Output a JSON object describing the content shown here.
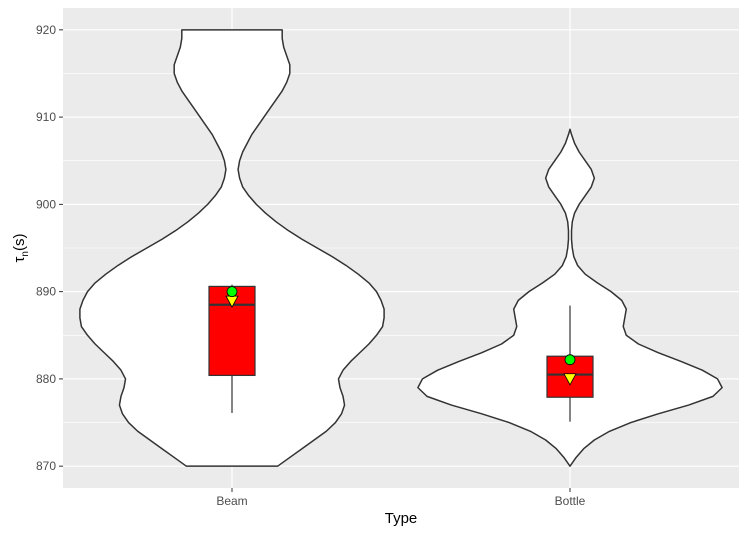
{
  "chart_data": {
    "type": "violin",
    "xlabel": "Type",
    "ylabel": {
      "base": "τ",
      "sub": "n",
      "rest": "(s)"
    },
    "ylim": [
      867.5,
      922.5
    ],
    "yticks": [
      870,
      880,
      890,
      900,
      910,
      920
    ],
    "ytick_labels": [
      "870",
      "880",
      "890",
      "900",
      "910",
      "920"
    ],
    "categories": [
      "Beam",
      "Bottle"
    ],
    "grid": true,
    "colors": {
      "panel": "#ebebeb",
      "grid_major": "#ffffff",
      "violin_fill": "#ffffff",
      "violin_stroke": "#333333",
      "box_fill": "#ff0000",
      "mean_marker": "#00ff00",
      "median_marker": "#ffff00"
    },
    "groups": [
      {
        "name": "Beam",
        "box": {
          "q1": 880.4,
          "median": 888.5,
          "q3": 890.6,
          "whisker_low": 876.1,
          "whisker_high": 890.8
        },
        "mean": 890.0,
        "median_marker": 888.8,
        "violin": [
          [
            870.0,
            0.3
          ],
          [
            871.0,
            0.38
          ],
          [
            872.0,
            0.46
          ],
          [
            873.0,
            0.54
          ],
          [
            874.0,
            0.62
          ],
          [
            875.0,
            0.68
          ],
          [
            876.0,
            0.72
          ],
          [
            877.0,
            0.74
          ],
          [
            878.0,
            0.73
          ],
          [
            879.0,
            0.71
          ],
          [
            880.0,
            0.7
          ],
          [
            881.0,
            0.73
          ],
          [
            882.0,
            0.78
          ],
          [
            883.0,
            0.84
          ],
          [
            884.0,
            0.9
          ],
          [
            885.0,
            0.95
          ],
          [
            886.0,
            0.99
          ],
          [
            887.0,
            1.0
          ],
          [
            888.0,
            1.0
          ],
          [
            889.0,
            0.98
          ],
          [
            890.0,
            0.95
          ],
          [
            891.0,
            0.9
          ],
          [
            892.0,
            0.83
          ],
          [
            893.0,
            0.75
          ],
          [
            894.0,
            0.66
          ],
          [
            895.0,
            0.56
          ],
          [
            896.0,
            0.46
          ],
          [
            897.0,
            0.37
          ],
          [
            898.0,
            0.29
          ],
          [
            899.0,
            0.22
          ],
          [
            900.0,
            0.16
          ],
          [
            901.0,
            0.11
          ],
          [
            902.0,
            0.07
          ],
          [
            903.0,
            0.05
          ],
          [
            904.0,
            0.04
          ],
          [
            905.0,
            0.05
          ],
          [
            906.0,
            0.07
          ],
          [
            907.0,
            0.1
          ],
          [
            908.0,
            0.13
          ],
          [
            909.0,
            0.17
          ],
          [
            910.0,
            0.21
          ],
          [
            911.0,
            0.25
          ],
          [
            912.0,
            0.29
          ],
          [
            913.0,
            0.33
          ],
          [
            914.0,
            0.36
          ],
          [
            915.0,
            0.38
          ],
          [
            916.0,
            0.38
          ],
          [
            917.0,
            0.36
          ],
          [
            918.0,
            0.34
          ],
          [
            919.0,
            0.33
          ],
          [
            920.0,
            0.33
          ]
        ]
      },
      {
        "name": "Bottle",
        "box": {
          "q1": 877.9,
          "median": 880.5,
          "q3": 882.6,
          "whisker_low": 875.1,
          "whisker_high": 888.4
        },
        "mean": 882.2,
        "median_marker": 879.9,
        "violin": [
          [
            870.0,
            0.0
          ],
          [
            870.5,
            0.02
          ],
          [
            871.0,
            0.04
          ],
          [
            872.0,
            0.09
          ],
          [
            873.0,
            0.16
          ],
          [
            874.0,
            0.26
          ],
          [
            875.0,
            0.4
          ],
          [
            876.0,
            0.58
          ],
          [
            877.0,
            0.78
          ],
          [
            878.0,
            0.94
          ],
          [
            879.0,
            1.0
          ],
          [
            880.0,
            0.97
          ],
          [
            881.0,
            0.87
          ],
          [
            882.0,
            0.73
          ],
          [
            883.0,
            0.58
          ],
          [
            884.0,
            0.45
          ],
          [
            885.0,
            0.37
          ],
          [
            886.0,
            0.35
          ],
          [
            887.0,
            0.36
          ],
          [
            888.0,
            0.37
          ],
          [
            889.0,
            0.34
          ],
          [
            890.0,
            0.27
          ],
          [
            891.0,
            0.18
          ],
          [
            892.0,
            0.1
          ],
          [
            893.0,
            0.05
          ],
          [
            894.0,
            0.025
          ],
          [
            895.0,
            0.015
          ],
          [
            896.0,
            0.01
          ],
          [
            897.0,
            0.01
          ],
          [
            898.0,
            0.015
          ],
          [
            899.0,
            0.03
          ],
          [
            900.0,
            0.06
          ],
          [
            901.0,
            0.1
          ],
          [
            902.0,
            0.14
          ],
          [
            903.0,
            0.16
          ],
          [
            904.0,
            0.14
          ],
          [
            905.0,
            0.1
          ],
          [
            906.0,
            0.06
          ],
          [
            907.0,
            0.03
          ],
          [
            908.0,
            0.01
          ],
          [
            908.6,
            0.0
          ]
        ]
      }
    ]
  }
}
